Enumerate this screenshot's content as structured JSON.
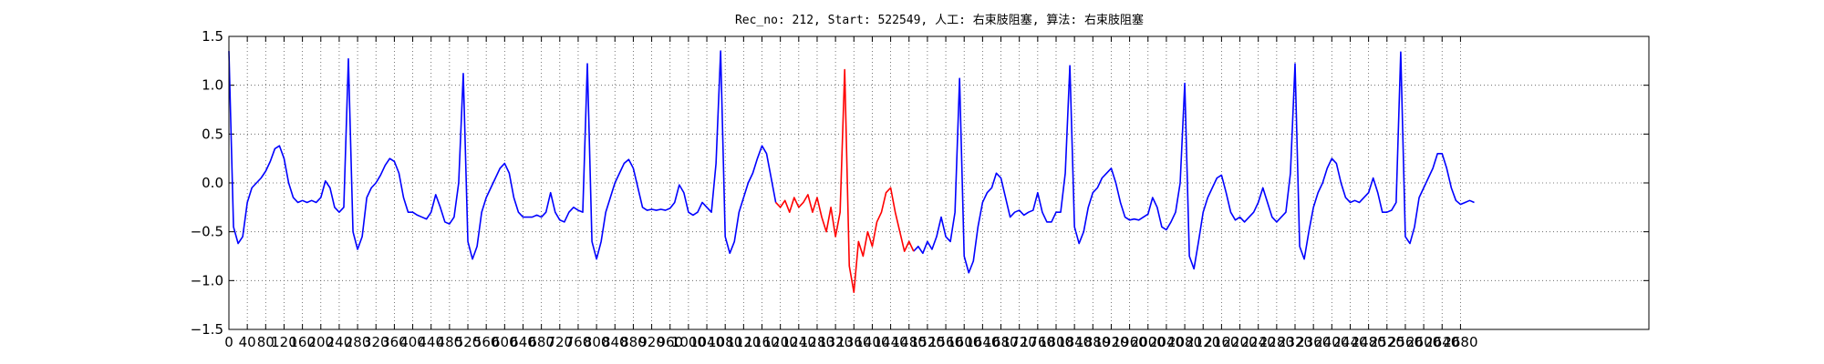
{
  "chart_data": {
    "type": "line",
    "title": "Rec_no: 212, Start: 522549, 人工: 右束肢阻塞, 算法: 右束肢阻塞",
    "xlim": [
      0,
      3090
    ],
    "xticks": [
      0,
      40,
      80,
      120,
      160,
      200,
      240,
      280,
      320,
      360,
      400,
      440,
      480,
      520,
      560,
      600,
      640,
      680,
      720,
      760,
      800,
      840,
      880,
      920,
      960,
      1000,
      1040,
      1080,
      1120,
      1160,
      1200,
      1240,
      1280,
      1320,
      1360,
      1400,
      1440,
      1480,
      1520,
      1560,
      1600,
      1640,
      1680,
      1720,
      1760,
      1800,
      1840,
      1880,
      1920,
      1960,
      2000,
      2040,
      2080,
      2120,
      2160,
      2200,
      2240,
      2280,
      2320,
      2360,
      2400,
      2440,
      2480,
      2520,
      2560,
      2600,
      2640,
      2680
    ],
    "ylim": [
      -1.5,
      1.5
    ],
    "yticks": [
      {
        "value": -1.5,
        "label": "−1.5"
      },
      {
        "value": -1.0,
        "label": "−1.0"
      },
      {
        "value": -0.5,
        "label": "−0.5"
      },
      {
        "value": 0,
        "label": "0.0"
      },
      {
        "value": 0.5,
        "label": "0.5"
      },
      {
        "value": 1.0,
        "label": "1.0"
      },
      {
        "value": 1.5,
        "label": "1.5"
      }
    ],
    "grid": true,
    "series": [
      {
        "color": "#0000ff",
        "x": [
          0,
          10,
          20,
          30,
          40,
          50,
          60,
          70,
          80,
          90,
          100,
          110,
          120,
          130,
          140,
          150,
          160,
          170,
          180,
          190,
          200,
          210,
          220,
          230,
          240,
          250,
          260,
          270,
          280,
          290,
          300,
          310,
          320,
          330,
          340,
          350,
          360,
          370,
          380,
          390,
          400,
          410,
          420,
          430,
          440,
          450,
          460,
          470,
          480,
          490,
          500,
          510,
          520,
          530,
          540,
          550,
          560,
          570,
          580,
          590,
          600,
          610,
          620,
          630,
          640,
          650,
          660,
          670,
          680,
          690,
          700,
          710,
          720,
          730,
          740,
          750,
          760,
          770,
          780,
          790,
          800,
          810,
          820,
          830,
          840,
          850,
          860,
          870,
          880,
          890,
          900,
          910,
          920,
          930,
          940,
          950,
          960,
          970,
          980,
          990,
          1000,
          1010,
          1020,
          1030,
          1040,
          1050,
          1060,
          1070,
          1080,
          1090,
          1100,
          1110,
          1120,
          1130,
          1140,
          1150,
          1160,
          1170,
          1180,
          1190,
          1200,
          1210,
          1220,
          1230,
          1240,
          1250,
          1260,
          1270,
          1280,
          1290,
          1300,
          1310,
          1320,
          1330,
          1340,
          1350,
          1360,
          1370,
          1380,
          1390,
          1400,
          1410,
          1420,
          1430,
          1440,
          1450,
          1460,
          1470,
          1480,
          1490,
          1500,
          1510,
          1520,
          1530,
          1540,
          1550,
          1560,
          1570,
          1580,
          1590,
          1600,
          1610,
          1620,
          1630,
          1640,
          1650,
          1660,
          1670,
          1680,
          1690,
          1700,
          1710,
          1720,
          1730,
          1740,
          1750,
          1760,
          1770,
          1780,
          1790,
          1800,
          1810,
          1820,
          1830,
          1840,
          1850,
          1860,
          1870,
          1880,
          1890,
          1900,
          1910,
          1920,
          1930,
          1940,
          1950,
          1960,
          1970,
          1980,
          1990,
          2000,
          2010,
          2020,
          2030,
          2040,
          2050,
          2060,
          2070,
          2080,
          2090,
          2100,
          2110,
          2120,
          2130,
          2140,
          2150,
          2160,
          2170,
          2180,
          2190,
          2200,
          2210,
          2220,
          2230,
          2240,
          2250,
          2260,
          2270,
          2280,
          2290,
          2300,
          2310,
          2320,
          2330,
          2340,
          2350,
          2360,
          2370,
          2380,
          2390,
          2400,
          2410,
          2420,
          2430,
          2440,
          2450,
          2460,
          2470,
          2480,
          2490,
          2500,
          2510,
          2520,
          2530,
          2540,
          2550,
          2560,
          2570,
          2580,
          2590,
          2600,
          2610,
          2620,
          2630,
          2640,
          2650,
          2660,
          2670,
          2680,
          2690,
          2700,
          2710
        ],
        "values": [
          1.35,
          -0.45,
          -0.62,
          -0.55,
          -0.2,
          -0.05,
          0.0,
          0.05,
          0.12,
          0.22,
          0.35,
          0.38,
          0.25,
          0.0,
          -0.15,
          -0.2,
          -0.18,
          -0.2,
          -0.18,
          -0.2,
          -0.15,
          0.02,
          -0.05,
          -0.25,
          -0.3,
          -0.25,
          1.27,
          -0.5,
          -0.68,
          -0.55,
          -0.15,
          -0.05,
          0.0,
          0.08,
          0.18,
          0.25,
          0.22,
          0.1,
          -0.15,
          -0.3,
          -0.3,
          -0.33,
          -0.35,
          -0.37,
          -0.3,
          -0.12,
          -0.25,
          -0.4,
          -0.42,
          -0.35,
          0.0,
          1.12,
          -0.6,
          -0.78,
          -0.65,
          -0.3,
          -0.15,
          -0.05,
          0.05,
          0.15,
          0.2,
          0.1,
          -0.15,
          -0.3,
          -0.35,
          -0.35,
          -0.35,
          -0.33,
          -0.35,
          -0.3,
          -0.1,
          -0.3,
          -0.38,
          -0.4,
          -0.3,
          -0.25,
          -0.28,
          -0.3,
          1.22,
          -0.6,
          -0.78,
          -0.6,
          -0.3,
          -0.15,
          0.0,
          0.1,
          0.2,
          0.24,
          0.15,
          -0.05,
          -0.25,
          -0.28,
          -0.27,
          -0.28,
          -0.27,
          -0.28,
          -0.26,
          -0.2,
          -0.02,
          -0.1,
          -0.3,
          -0.33,
          -0.3,
          -0.2,
          -0.25,
          -0.3,
          0.2,
          1.35,
          -0.55,
          -0.72,
          -0.6,
          -0.3,
          -0.15,
          0.0,
          0.1,
          0.25,
          0.38,
          0.3,
          0.05,
          -0.2,
          null,
          null,
          null,
          null,
          null,
          null,
          null,
          null,
          null,
          null,
          null,
          null,
          null,
          null,
          null,
          null,
          null,
          null,
          null,
          null,
          null,
          null,
          null,
          null,
          null,
          null,
          null,
          null,
          null,
          -0.7,
          -0.65,
          -0.72,
          -0.6,
          -0.68,
          -0.55,
          -0.35,
          -0.55,
          -0.6,
          -0.3,
          1.07,
          -0.75,
          -0.92,
          -0.8,
          -0.45,
          -0.2,
          -0.1,
          -0.05,
          0.1,
          0.05,
          -0.15,
          -0.35,
          -0.3,
          -0.28,
          -0.33,
          -0.3,
          -0.28,
          -0.1,
          -0.3,
          -0.4,
          -0.4,
          -0.3,
          -0.3,
          0.1,
          1.2,
          -0.45,
          -0.62,
          -0.5,
          -0.25,
          -0.1,
          -0.05,
          0.05,
          0.1,
          0.15,
          0.0,
          -0.2,
          -0.35,
          -0.38,
          -0.37,
          -0.38,
          -0.35,
          -0.32,
          -0.15,
          -0.25,
          -0.45,
          -0.48,
          -0.4,
          -0.3,
          0.0,
          1.02,
          -0.75,
          -0.88,
          -0.6,
          -0.3,
          -0.15,
          -0.05,
          0.05,
          0.08,
          -0.1,
          -0.3,
          -0.38,
          -0.35,
          -0.4,
          -0.35,
          -0.3,
          -0.2,
          -0.05,
          -0.2,
          -0.35,
          -0.4,
          -0.35,
          -0.3,
          0.1,
          1.22,
          -0.65,
          -0.78,
          -0.5,
          -0.25,
          -0.1,
          0.0,
          0.15,
          0.25,
          0.2,
          0.0,
          -0.15,
          -0.2,
          -0.18,
          -0.2,
          -0.15,
          -0.1,
          0.05,
          -0.1,
          -0.3,
          -0.3,
          -0.28,
          -0.2,
          1.34,
          -0.55,
          -0.62,
          -0.45,
          -0.15,
          -0.05,
          0.05,
          0.15,
          0.3,
          0.3,
          0.15,
          -0.05,
          -0.18,
          -0.22,
          -0.2,
          -0.18,
          -0.2
        ]
      },
      {
        "color": "#ff0000",
        "x": [
          1190,
          1200,
          1210,
          1220,
          1230,
          1240,
          1250,
          1260,
          1270,
          1280,
          1290,
          1300,
          1310,
          1320,
          1330,
          1340,
          1350,
          1360,
          1370,
          1380,
          1390,
          1400,
          1410,
          1420,
          1430,
          1440,
          1450,
          1460,
          1470,
          1480,
          1490
        ],
        "values": [
          -0.2,
          -0.25,
          -0.18,
          -0.3,
          -0.15,
          -0.25,
          -0.2,
          -0.12,
          -0.3,
          -0.15,
          -0.35,
          -0.5,
          -0.25,
          -0.55,
          -0.3,
          1.16,
          -0.85,
          -1.12,
          -0.6,
          -0.75,
          -0.5,
          -0.65,
          -0.4,
          -0.3,
          -0.1,
          -0.05,
          -0.3,
          -0.5,
          -0.7,
          -0.6,
          -0.7
        ]
      }
    ]
  }
}
